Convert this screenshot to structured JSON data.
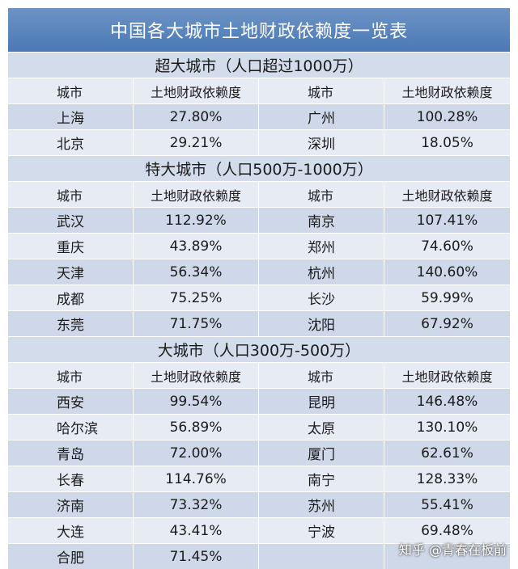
{
  "title": "中国各大城市土地财政依赖度一览表",
  "headers": {
    "city": "城市",
    "ratio": "土地财政依赖度"
  },
  "sections": [
    {
      "name": "超大城市（人口超过1000万）",
      "rows": [
        {
          "left": {
            "city": "上海",
            "pct": "27.80%"
          },
          "right": {
            "city": "广州",
            "pct": "100.28%"
          }
        },
        {
          "left": {
            "city": "北京",
            "pct": "29.21%"
          },
          "right": {
            "city": "深圳",
            "pct": "18.05%"
          }
        }
      ]
    },
    {
      "name": "特大城市（人口500万-1000万）",
      "rows": [
        {
          "left": {
            "city": "武汉",
            "pct": "112.92%"
          },
          "right": {
            "city": "南京",
            "pct": "107.41%"
          }
        },
        {
          "left": {
            "city": "重庆",
            "pct": "43.89%"
          },
          "right": {
            "city": "郑州",
            "pct": "74.60%"
          }
        },
        {
          "left": {
            "city": "天津",
            "pct": "56.34%"
          },
          "right": {
            "city": "杭州",
            "pct": "140.60%"
          }
        },
        {
          "left": {
            "city": "成都",
            "pct": "75.25%"
          },
          "right": {
            "city": "长沙",
            "pct": "59.99%"
          }
        },
        {
          "left": {
            "city": "东莞",
            "pct": "71.75%"
          },
          "right": {
            "city": "沈阳",
            "pct": "67.92%"
          }
        }
      ]
    },
    {
      "name": "大城市（人口300万-500万）",
      "rows": [
        {
          "left": {
            "city": "西安",
            "pct": "99.54%"
          },
          "right": {
            "city": "昆明",
            "pct": "146.48%"
          }
        },
        {
          "left": {
            "city": "哈尔滨",
            "pct": "56.89%"
          },
          "right": {
            "city": "太原",
            "pct": "130.10%"
          }
        },
        {
          "left": {
            "city": "青岛",
            "pct": "72.00%"
          },
          "right": {
            "city": "厦门",
            "pct": "62.61%"
          }
        },
        {
          "left": {
            "city": "长春",
            "pct": "114.76%"
          },
          "right": {
            "city": "南宁",
            "pct": "128.33%"
          }
        },
        {
          "left": {
            "city": "济南",
            "pct": "73.32%"
          },
          "right": {
            "city": "苏州",
            "pct": "55.41%"
          }
        },
        {
          "left": {
            "city": "大连",
            "pct": "43.41%"
          },
          "right": {
            "city": "宁波",
            "pct": "69.48%"
          }
        },
        {
          "left": {
            "city": "合肥",
            "pct": "71.45%"
          },
          "right": {
            "city": "",
            "pct": ""
          }
        }
      ]
    }
  ],
  "watermark": "知乎 @青春在板前"
}
